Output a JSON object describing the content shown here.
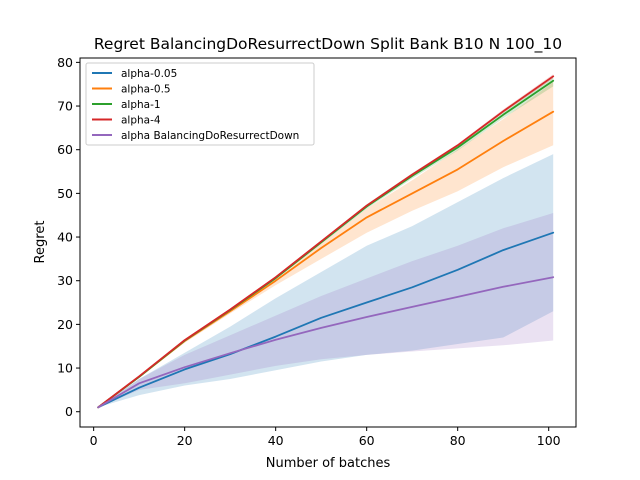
{
  "chart_data": {
    "type": "line",
    "title": "Regret BalancingDoResurrectDown Split Bank B10 N 100_10",
    "xlabel": "Number of batches",
    "ylabel": "Regret",
    "xlim": [
      -3,
      106
    ],
    "ylim": [
      -3.5,
      81
    ],
    "x_ticks": [
      0,
      20,
      40,
      60,
      80,
      100
    ],
    "y_ticks": [
      0,
      10,
      20,
      30,
      40,
      50,
      60,
      70,
      80
    ],
    "legend_position": "upper-left",
    "x": [
      1,
      10,
      20,
      30,
      40,
      50,
      60,
      70,
      80,
      90,
      101
    ],
    "series": [
      {
        "name": "alpha-0.05",
        "color": "#1f77b4",
        "values": [
          1.0,
          5.5,
          9.7,
          13.2,
          17.2,
          21.5,
          25.0,
          28.5,
          32.5,
          37.0,
          41.0
        ],
        "lower": [
          1.0,
          3.8,
          6.0,
          7.5,
          9.5,
          11.5,
          13.0,
          14.0,
          15.5,
          17.0,
          23.0
        ],
        "upper": [
          1.0,
          7.5,
          13.5,
          19.5,
          26.0,
          32.0,
          38.0,
          42.5,
          48.0,
          53.5,
          59.0
        ]
      },
      {
        "name": "alpha-0.5",
        "color": "#ff7f0e",
        "values": [
          1.0,
          8.0,
          16.2,
          23.0,
          30.0,
          37.5,
          44.5,
          50.0,
          55.5,
          62.0,
          68.7
        ],
        "lower": [
          1.0,
          7.8,
          15.8,
          22.5,
          29.0,
          35.0,
          41.0,
          46.0,
          50.5,
          56.0,
          61.0
        ],
        "upper": [
          1.0,
          8.2,
          16.6,
          23.6,
          31.0,
          38.5,
          46.5,
          53.0,
          60.0,
          67.0,
          75.5
        ]
      },
      {
        "name": "alpha-1",
        "color": "#2ca02c",
        "values": [
          1.0,
          8.0,
          16.3,
          23.3,
          30.6,
          38.8,
          47.0,
          54.0,
          60.5,
          68.0,
          75.8
        ],
        "lower": [
          1.0,
          7.9,
          16.1,
          23.0,
          30.3,
          38.4,
          46.5,
          53.4,
          59.8,
          67.2,
          74.5
        ],
        "upper": [
          1.0,
          8.1,
          16.5,
          23.6,
          30.9,
          39.2,
          47.5,
          54.6,
          61.2,
          68.8,
          76.8
        ]
      },
      {
        "name": "alpha-4",
        "color": "#d62728",
        "values": [
          1.0,
          8.1,
          16.4,
          23.4,
          30.8,
          39.0,
          47.2,
          54.3,
          61.0,
          68.8,
          76.8
        ],
        "lower": [
          1.0,
          8.0,
          16.2,
          23.2,
          30.6,
          38.8,
          47.0,
          54.0,
          60.7,
          68.4,
          76.3
        ],
        "upper": [
          1.0,
          8.2,
          16.6,
          23.6,
          31.0,
          39.2,
          47.4,
          54.6,
          61.3,
          69.2,
          77.3
        ]
      },
      {
        "name": "alpha BalancingDoResurrectDown",
        "color": "#9467bd",
        "values": [
          1.0,
          6.5,
          10.2,
          13.4,
          16.5,
          19.2,
          21.7,
          24.0,
          26.3,
          28.6,
          30.8
        ],
        "lower": [
          1.0,
          5.0,
          6.5,
          8.5,
          10.5,
          12.0,
          13.0,
          13.8,
          14.5,
          15.2,
          16.3
        ],
        "upper": [
          1.0,
          7.5,
          13.0,
          17.5,
          22.0,
          26.5,
          30.5,
          34.5,
          38.0,
          42.0,
          45.5
        ]
      }
    ]
  }
}
